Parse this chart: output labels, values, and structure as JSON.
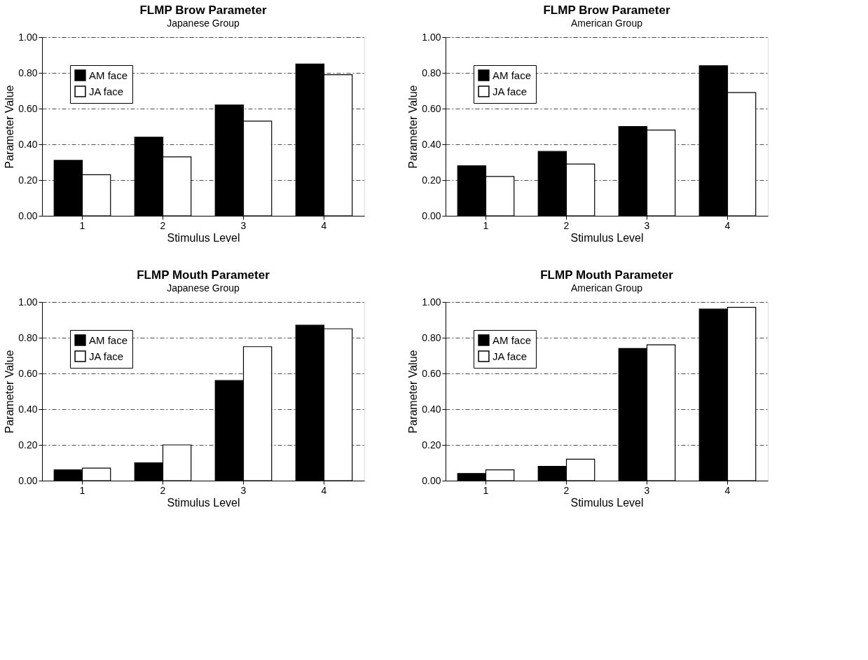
{
  "chart_data": [
    {
      "type": "bar",
      "title": "FLMP Brow Parameter",
      "subtitle": "Japanese Group",
      "xlabel": "Stimulus Level",
      "ylabel": "Parameter Value",
      "categories": [
        "1",
        "2",
        "3",
        "4"
      ],
      "series": [
        {
          "name": "AM face",
          "color": "#000000",
          "values": [
            0.31,
            0.44,
            0.62,
            0.85
          ]
        },
        {
          "name": "JA face",
          "color": "#ffffff",
          "values": [
            0.23,
            0.33,
            0.53,
            0.79
          ]
        }
      ],
      "ylim": [
        0,
        1
      ],
      "yticks": [
        {
          "value": 0,
          "label": "0.00"
        },
        {
          "value": 0.2,
          "label": "0.20"
        },
        {
          "value": 0.4,
          "label": "0.40"
        },
        {
          "value": 0.6,
          "label": "0.60"
        },
        {
          "value": 0.8,
          "label": "0.80"
        },
        {
          "value": 1,
          "label": "1.00"
        }
      ],
      "grid": "y",
      "legend": "top left"
    },
    {
      "type": "bar",
      "title": "FLMP Brow Parameter",
      "subtitle": "American Group",
      "xlabel": "Stimulus Level",
      "ylabel": "Parameter Value",
      "categories": [
        "1",
        "2",
        "3",
        "4"
      ],
      "series": [
        {
          "name": "AM face",
          "color": "#000000",
          "values": [
            0.28,
            0.36,
            0.5,
            0.84
          ]
        },
        {
          "name": "JA face",
          "color": "#ffffff",
          "values": [
            0.22,
            0.29,
            0.48,
            0.69
          ]
        }
      ],
      "ylim": [
        0,
        1
      ],
      "yticks": [
        {
          "value": 0,
          "label": "0.00"
        },
        {
          "value": 0.2,
          "label": "0.20"
        },
        {
          "value": 0.4,
          "label": "0.40"
        },
        {
          "value": 0.6,
          "label": "0.60"
        },
        {
          "value": 0.8,
          "label": "0.80"
        },
        {
          "value": 1,
          "label": "1.00"
        }
      ],
      "grid": "y",
      "legend": "top left"
    },
    {
      "type": "bar",
      "title": "FLMP Mouth Parameter",
      "subtitle": "Japanese Group",
      "xlabel": "Stimulus Level",
      "ylabel": "Parameter Value",
      "categories": [
        "1",
        "2",
        "3",
        "4"
      ],
      "series": [
        {
          "name": "AM face",
          "color": "#000000",
          "values": [
            0.06,
            0.1,
            0.56,
            0.87
          ]
        },
        {
          "name": "JA face",
          "color": "#ffffff",
          "values": [
            0.07,
            0.2,
            0.75,
            0.85
          ]
        }
      ],
      "ylim": [
        0,
        1
      ],
      "yticks": [
        {
          "value": 0,
          "label": "0.00"
        },
        {
          "value": 0.2,
          "label": "0.20"
        },
        {
          "value": 0.4,
          "label": "0.40"
        },
        {
          "value": 0.6,
          "label": "0.60"
        },
        {
          "value": 0.8,
          "label": "0.80"
        },
        {
          "value": 1,
          "label": "1.00"
        }
      ],
      "grid": "y",
      "legend": "top left"
    },
    {
      "type": "bar",
      "title": "FLMP Mouth Parameter",
      "subtitle": "American Group",
      "xlabel": "Stimulus Level",
      "ylabel": "Parameter Value",
      "categories": [
        "1",
        "2",
        "3",
        "4"
      ],
      "series": [
        {
          "name": "AM face",
          "color": "#000000",
          "values": [
            0.04,
            0.08,
            0.74,
            0.96
          ]
        },
        {
          "name": "JA face",
          "color": "#ffffff",
          "values": [
            0.06,
            0.12,
            0.76,
            0.97
          ]
        }
      ],
      "ylim": [
        0,
        1
      ],
      "yticks": [
        {
          "value": 0,
          "label": "0.00"
        },
        {
          "value": 0.2,
          "label": "0.20"
        },
        {
          "value": 0.4,
          "label": "0.40"
        },
        {
          "value": 0.6,
          "label": "0.60"
        },
        {
          "value": 0.8,
          "label": "0.80"
        },
        {
          "value": 1,
          "label": "1.00"
        }
      ],
      "grid": "y",
      "legend": "top left"
    }
  ]
}
